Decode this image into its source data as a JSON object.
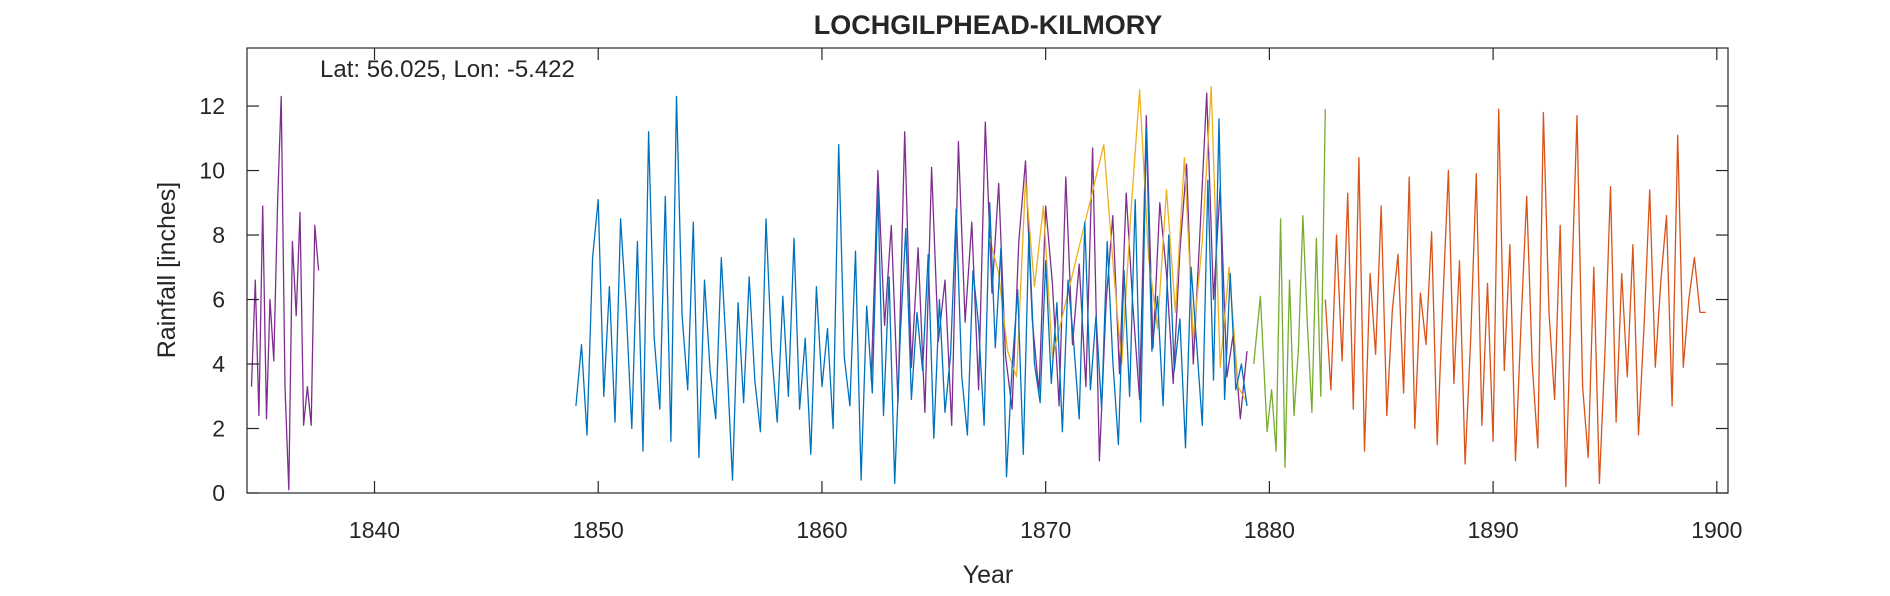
{
  "chart_data": {
    "type": "line",
    "title": "LOCHGILPHEAD-KILMORY",
    "annotation": "Lat: 56.025, Lon: -5.422",
    "xlabel": "Year",
    "ylabel": "Rainfall [inches]",
    "xlim": [
      1834.3,
      1900.5
    ],
    "ylim": [
      0,
      13.8
    ],
    "xticks": [
      1840,
      1850,
      1860,
      1870,
      1880,
      1890,
      1900
    ],
    "yticks": [
      0,
      2,
      4,
      6,
      8,
      10,
      12
    ],
    "grid": false,
    "box": true,
    "series": [
      {
        "color": "#7E2F8E",
        "segments": [
          {
            "x": [
              1834.5,
              1834.67,
              1834.83,
              1835.0,
              1835.17,
              1835.33,
              1835.5,
              1835.67,
              1835.83,
              1836.0,
              1836.17,
              1836.33,
              1836.5,
              1836.67,
              1836.83,
              1837.0,
              1837.17,
              1837.33,
              1837.5
            ],
            "y": [
              3.3,
              6.6,
              2.4,
              8.9,
              2.3,
              6.0,
              4.1,
              9.0,
              12.3,
              3.3,
              0.1,
              7.8,
              5.5,
              8.7,
              2.1,
              3.3,
              2.1,
              8.3,
              6.9
            ]
          },
          {
            "x": [
              1862.2,
              1862.5,
              1862.8,
              1863.1,
              1863.4,
              1863.7,
              1864.0,
              1864.3,
              1864.6,
              1864.9,
              1865.2,
              1865.5,
              1865.8,
              1866.1,
              1866.4,
              1866.7,
              1867.0,
              1867.3,
              1867.6,
              1867.9,
              1868.2,
              1868.5,
              1868.8,
              1869.1,
              1869.4,
              1869.7,
              1870.0,
              1870.3,
              1870.6,
              1870.9,
              1871.2,
              1871.5,
              1871.8,
              1872.1,
              1872.4,
              1872.7,
              1873.0,
              1873.3,
              1873.6,
              1873.9,
              1874.2,
              1874.5,
              1874.8,
              1875.1,
              1875.4,
              1875.7,
              1876.0,
              1876.3,
              1876.6,
              1876.9,
              1877.2,
              1877.5,
              1877.8,
              1878.1,
              1878.4,
              1878.7,
              1879.0
            ],
            "y": [
              3.5,
              10.0,
              5.2,
              8.3,
              2.8,
              11.2,
              3.9,
              7.6,
              2.5,
              10.1,
              4.7,
              6.6,
              2.1,
              10.9,
              5.3,
              8.4,
              3.2,
              11.5,
              6.2,
              9.6,
              4.3,
              2.6,
              7.8,
              10.3,
              5.4,
              3.1,
              8.9,
              6.5,
              2.7,
              9.8,
              4.6,
              7.1,
              3.3,
              10.7,
              1.0,
              5.9,
              8.6,
              3.7,
              9.3,
              5.8,
              2.9,
              11.7,
              4.5,
              9.0,
              6.8,
              3.4,
              7.5,
              10.2,
              4.0,
              8.1,
              12.4,
              6.0,
              9.5,
              3.6,
              5.0,
              2.3,
              4.4
            ]
          }
        ]
      },
      {
        "color": "#EDB120",
        "segments": [
          {
            "x": [
              1867.5,
              1867.9,
              1868.3,
              1868.7,
              1869.1,
              1869.5,
              1869.9,
              1870.3,
              1872.6,
              1873.0,
              1873.4,
              1873.8,
              1874.2,
              1874.6,
              1875.0,
              1875.4,
              1875.8,
              1876.2,
              1876.6,
              1877.0,
              1877.4,
              1877.8,
              1878.2,
              1878.6,
              1879.0
            ],
            "y": [
              7.9,
              6.8,
              4.4,
              3.6,
              9.7,
              6.4,
              8.9,
              4.2,
              10.8,
              7.2,
              4.0,
              8.6,
              12.5,
              7.3,
              5.1,
              9.4,
              5.6,
              10.4,
              4.8,
              7.8,
              12.6,
              3.9,
              7.0,
              3.3,
              2.8
            ]
          }
        ]
      },
      {
        "color": "#0072BD",
        "segments": [
          {
            "x": [
              1849.0,
              1849.25,
              1849.5,
              1849.75,
              1850.0,
              1850.25,
              1850.5,
              1850.75,
              1851.0,
              1851.25,
              1851.5,
              1851.75,
              1852.0,
              1852.25,
              1852.5,
              1852.75,
              1853.0,
              1853.25,
              1853.5,
              1853.75,
              1854.0,
              1854.25,
              1854.5,
              1854.75,
              1855.0,
              1855.25,
              1855.5,
              1855.75,
              1856.0,
              1856.25,
              1856.5,
              1856.75,
              1857.0,
              1857.25,
              1857.5,
              1857.75,
              1858.0,
              1858.25,
              1858.5,
              1858.75,
              1859.0,
              1859.25,
              1859.5,
              1859.75,
              1860.0,
              1860.25,
              1860.5,
              1860.75,
              1861.0,
              1861.25,
              1861.5,
              1861.75,
              1862.0,
              1862.25,
              1862.5,
              1862.75,
              1863.0,
              1863.25,
              1863.5,
              1863.75,
              1864.0,
              1864.25,
              1864.5,
              1864.75,
              1865.0,
              1865.25,
              1865.5,
              1865.75,
              1866.0,
              1866.25,
              1866.5,
              1866.75,
              1867.0,
              1867.25,
              1867.5,
              1867.75,
              1868.0,
              1868.25,
              1868.5,
              1868.75,
              1869.0,
              1869.25,
              1869.5,
              1869.75,
              1870.0,
              1870.25,
              1870.5,
              1870.75,
              1871.0,
              1871.25,
              1871.5,
              1871.75,
              1872.0,
              1872.25,
              1872.5,
              1872.75,
              1873.0,
              1873.25,
              1873.5,
              1873.75,
              1874.0,
              1874.25,
              1874.5,
              1874.75,
              1875.0,
              1875.25,
              1875.5,
              1875.75,
              1876.0,
              1876.25,
              1876.5,
              1876.75,
              1877.0,
              1877.25,
              1877.5,
              1877.75,
              1878.0,
              1878.25,
              1878.5,
              1878.75,
              1879.0
            ],
            "y": [
              2.7,
              4.6,
              1.8,
              7.3,
              9.1,
              3.0,
              6.4,
              2.2,
              8.5,
              5.7,
              2.0,
              7.8,
              1.3,
              11.2,
              4.8,
              2.6,
              9.2,
              1.6,
              12.3,
              5.5,
              3.2,
              8.4,
              1.1,
              6.6,
              3.8,
              2.3,
              7.3,
              4.1,
              0.4,
              5.9,
              2.8,
              6.7,
              3.5,
              1.9,
              8.5,
              4.4,
              2.2,
              6.1,
              3.0,
              7.9,
              2.6,
              4.8,
              1.2,
              6.4,
              3.3,
              5.1,
              2.0,
              10.8,
              4.2,
              2.7,
              7.5,
              0.4,
              5.8,
              3.1,
              9.4,
              2.4,
              6.7,
              0.3,
              4.9,
              8.2,
              2.9,
              5.6,
              3.8,
              7.4,
              1.7,
              6.0,
              2.5,
              4.3,
              8.8,
              3.6,
              1.8,
              6.9,
              5.2,
              2.1,
              9.0,
              4.5,
              7.6,
              0.5,
              3.9,
              6.3,
              1.2,
              8.1,
              4.0,
              2.8,
              7.2,
              3.4,
              5.9,
              1.9,
              6.6,
              4.7,
              2.3,
              8.4,
              3.2,
              5.5,
              2.6,
              7.8,
              4.1,
              1.5,
              6.9,
              3.0,
              9.1,
              2.2,
              11.3,
              4.4,
              6.1,
              2.7,
              8.0,
              3.8,
              5.4,
              1.4,
              7.0,
              4.6,
              2.1,
              9.7,
              3.5,
              11.6,
              2.9,
              6.8,
              3.2,
              4.0,
              2.7
            ]
          }
        ]
      },
      {
        "color": "#77AC30",
        "segments": [
          {
            "x": [
              1879.3,
              1879.6,
              1879.9,
              1880.1,
              1880.3,
              1880.5,
              1880.7,
              1880.9,
              1881.1,
              1881.3,
              1881.5,
              1881.7,
              1881.9,
              1882.1,
              1882.3,
              1882.5
            ],
            "y": [
              4.0,
              6.1,
              1.9,
              3.2,
              1.3,
              8.5,
              0.8,
              6.6,
              2.4,
              4.5,
              8.6,
              5.2,
              2.5,
              7.9,
              3.0,
              11.9
            ]
          }
        ]
      },
      {
        "color": "#D95319",
        "segments": [
          {
            "x": [
              1882.5,
              1882.75,
              1883.0,
              1883.25,
              1883.5,
              1883.75,
              1884.0,
              1884.25,
              1884.5,
              1884.75,
              1885.0,
              1885.25,
              1885.5,
              1885.75,
              1886.0,
              1886.25,
              1886.5,
              1886.75,
              1887.0,
              1887.25,
              1887.5,
              1887.75,
              1888.0,
              1888.25,
              1888.5,
              1888.75,
              1889.0,
              1889.25,
              1889.5,
              1889.75,
              1890.0,
              1890.25,
              1890.5,
              1890.75,
              1891.0,
              1891.25,
              1891.5,
              1891.75,
              1892.0,
              1892.25,
              1892.5,
              1892.75,
              1893.0,
              1893.25,
              1893.5,
              1893.75,
              1894.0,
              1894.25,
              1894.5,
              1894.75,
              1895.0,
              1895.25,
              1895.5,
              1895.75,
              1896.0,
              1896.25,
              1896.5,
              1896.75,
              1897.0,
              1897.25,
              1897.5,
              1897.75,
              1898.0,
              1898.25,
              1898.5,
              1898.75,
              1899.0,
              1899.25,
              1899.5
            ],
            "y": [
              6.0,
              3.2,
              8.0,
              4.1,
              9.3,
              2.6,
              10.4,
              1.3,
              6.8,
              4.3,
              8.9,
              2.4,
              5.7,
              7.4,
              3.1,
              9.8,
              2.0,
              6.2,
              4.6,
              8.1,
              1.5,
              5.9,
              10.0,
              3.4,
              7.2,
              0.9,
              4.8,
              9.9,
              2.1,
              6.5,
              1.6,
              11.9,
              3.8,
              7.7,
              1.0,
              5.3,
              9.2,
              4.0,
              1.4,
              11.8,
              5.6,
              2.9,
              8.3,
              0.2,
              6.1,
              11.7,
              3.3,
              1.1,
              7.0,
              0.3,
              4.4,
              9.5,
              2.2,
              6.8,
              3.6,
              7.7,
              1.8,
              5.2,
              9.4,
              3.9,
              6.6,
              8.6,
              2.7,
              11.1,
              3.9,
              6.0,
              7.3,
              5.6,
              5.6
            ]
          }
        ]
      }
    ]
  }
}
